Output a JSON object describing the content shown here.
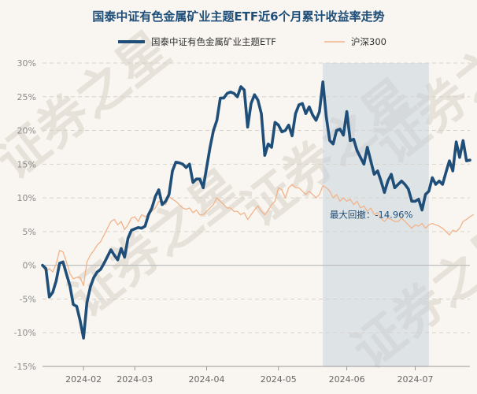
{
  "chart_data": {
    "type": "line",
    "title": "国泰中证有色金属矿业主题ETF近6个月累计收益率走势",
    "watermark": "证券之星",
    "xlabel": "",
    "ylabel": "",
    "ylim": [
      -15,
      30
    ],
    "y_ticks": [
      30,
      25,
      20,
      15,
      10,
      5,
      0,
      -5,
      -10,
      -15
    ],
    "y_tick_labels": [
      "30%",
      "25%",
      "20%",
      "15%",
      "10%",
      "5%",
      "0%",
      "-5%",
      "-10%",
      "-15%"
    ],
    "x_ticks": [
      {
        "index": 12,
        "label": "2024-02"
      },
      {
        "index": 27,
        "label": "2024-03"
      },
      {
        "index": 48,
        "label": "2024-04"
      },
      {
        "index": 69,
        "label": "2024-05"
      },
      {
        "index": 89,
        "label": "2024-06"
      },
      {
        "index": 109,
        "label": "2024-07"
      }
    ],
    "series": [
      {
        "name": "国泰中证有色金属矿业主题ETF",
        "color": "#1f4e79",
        "values": [
          0,
          -0.5,
          -4.7,
          -4.0,
          -2.3,
          0.3,
          0.5,
          -1.3,
          -3.0,
          -5.8,
          -6.1,
          -8.2,
          -10.8,
          -5.5,
          -3.2,
          -1.8,
          -1.0,
          -0.6,
          0.3,
          1.3,
          2.3,
          1.5,
          0.8,
          2.5,
          1.2,
          4.0,
          5.2,
          5.4,
          5.6,
          5.5,
          5.8,
          7.5,
          8.5,
          10.2,
          11.2,
          9.0,
          9.5,
          10.5,
          14.0,
          15.3,
          15.2,
          15.0,
          14.5,
          15.0,
          12.3,
          12.8,
          12.8,
          11.5,
          14.5,
          17.5,
          20.0,
          21.5,
          24.8,
          24.8,
          25.5,
          25.7,
          25.5,
          25.0,
          26.5,
          26.0,
          20.5,
          24.0,
          25.3,
          24.5,
          22.5,
          16.3,
          18.0,
          17.5,
          21.2,
          20.8,
          19.8,
          20.0,
          20.8,
          19.2,
          22.5,
          23.8,
          24.0,
          22.5,
          23.5,
          22.3,
          21.5,
          22.8,
          27.2,
          22.0,
          18.5,
          18.0,
          20.0,
          20.2,
          19.3,
          22.8,
          18.5,
          18.7,
          17.0,
          16.0,
          15.0,
          17.5,
          15.5,
          13.5,
          14.0,
          12.5,
          10.8,
          12.5,
          13.5,
          11.5,
          12.0,
          12.5,
          12.0,
          11.3,
          9.5,
          9.5,
          9.8,
          8.2,
          10.5,
          11.0,
          13.0,
          12.0,
          12.5,
          12.0,
          13.8,
          15.5,
          14.0,
          18.3,
          16.0,
          18.5,
          15.5,
          15.6
        ]
      },
      {
        "name": "沪深300",
        "color": "#f0b38a",
        "values": [
          0,
          -1.0,
          -0.5,
          -1.0,
          0.2,
          2.2,
          2.0,
          0.5,
          -1.2,
          -2.0,
          -1.8,
          -1.8,
          -3.0,
          0.5,
          1.5,
          2.2,
          3.0,
          3.5,
          4.5,
          5.5,
          6.5,
          6.8,
          6.0,
          6.5,
          5.3,
          6.0,
          7.0,
          7.2,
          6.5,
          7.5,
          7.2,
          7.5,
          8.0,
          8.5,
          9.5,
          9.3,
          9.0,
          10.2,
          9.8,
          9.5,
          9.0,
          8.5,
          8.3,
          8.5,
          7.8,
          8.2,
          7.5,
          7.5,
          8.0,
          8.5,
          9.0,
          10.0,
          9.5,
          9.0,
          8.5,
          8.5,
          8.0,
          8.0,
          7.5,
          7.8,
          6.8,
          7.5,
          8.2,
          8.8,
          8.0,
          7.5,
          8.2,
          9.0,
          9.5,
          11.5,
          11.2,
          10.0,
          11.5,
          12.0,
          11.5,
          11.5,
          11.0,
          10.5,
          11.0,
          10.5,
          10.0,
          10.5,
          11.8,
          11.5,
          11.0,
          10.0,
          10.5,
          9.5,
          10.0,
          9.5,
          9.8,
          9.0,
          9.5,
          8.5,
          8.8,
          8.0,
          8.5,
          7.5,
          7.8,
          7.0,
          6.5,
          7.0,
          6.8,
          6.5,
          6.5,
          7.0,
          6.5,
          6.0,
          5.5,
          6.0,
          5.8,
          6.2,
          5.5,
          6.0,
          6.2,
          6.0,
          5.8,
          5.5,
          5.0,
          4.5,
          5.2,
          5.0,
          5.5,
          6.5,
          6.8,
          7.2,
          7.5
        ]
      }
    ],
    "shaded_region": {
      "start_index": 82,
      "end_index": 113
    },
    "annotation": {
      "text": "最大回撤：-14.96%",
      "index": 84,
      "y": 7.5
    },
    "legend_position": "top-center",
    "grid": true
  }
}
